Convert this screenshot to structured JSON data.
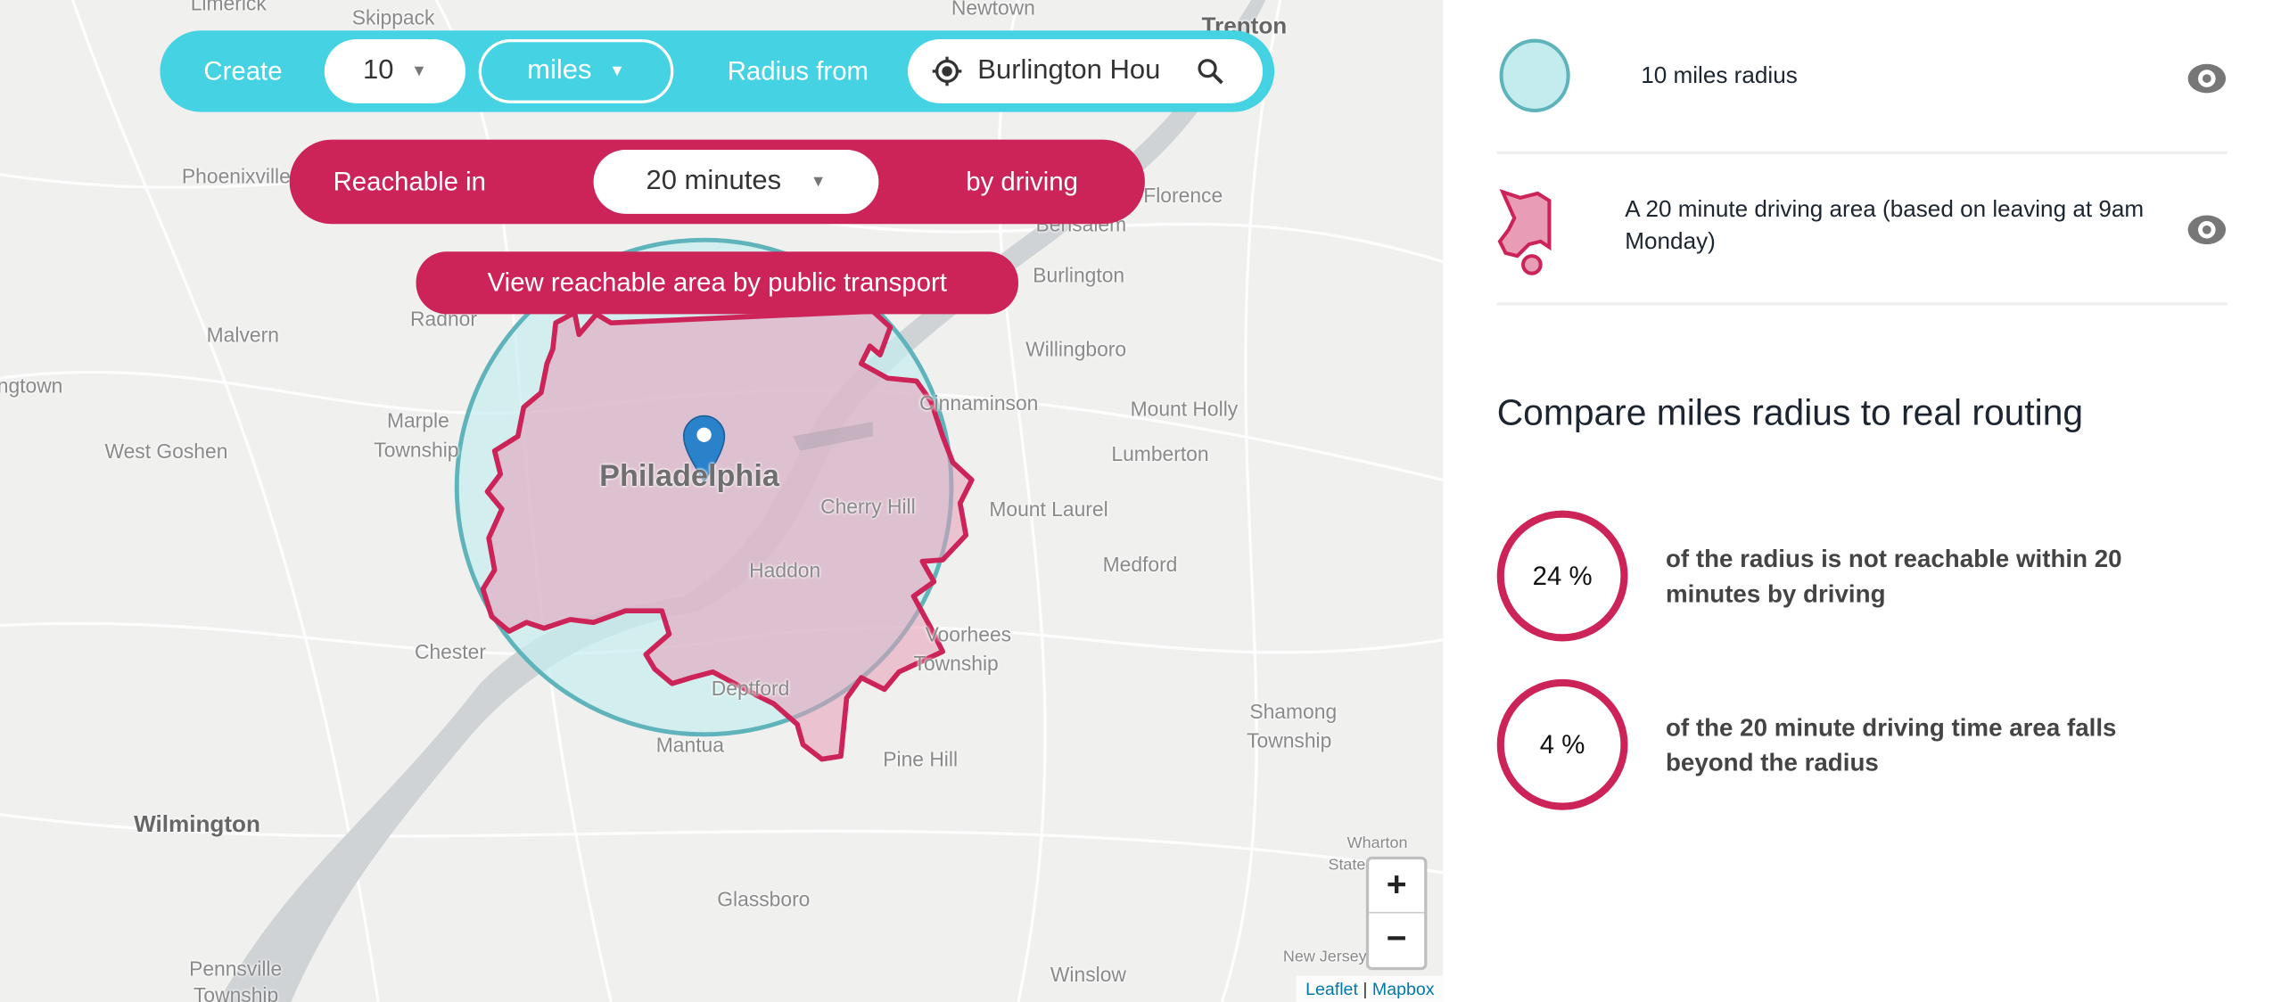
{
  "colors": {
    "accent_cyan": "#45d2e2",
    "accent_crimson": "#cc2458",
    "radius_fill": "#c4ecef",
    "radius_stroke": "#5fb3bb",
    "area_fill": "#e89cb6"
  },
  "controls": {
    "create_label": "Create",
    "radius_value": "10",
    "unit_value": "miles",
    "radius_from_label": "Radius from",
    "location_value": "Burlington Hou",
    "reachable_label": "Reachable in",
    "time_value": "20 minutes",
    "mode_label": "by driving",
    "public_transport_button": "View reachable area by public transport",
    "icons": {
      "locate": "crosshair-icon",
      "search": "search-icon",
      "dropdown": "caret-down-icon"
    }
  },
  "map": {
    "towns": [
      "Limerick",
      "Skippack",
      "Newtown",
      "Trenton",
      "Phoenixville",
      "Malvern",
      "Radnor",
      "Bensalem",
      "Florence",
      "Burlington",
      "Willingboro",
      "Cinnaminson",
      "Mount Holly",
      "ngtown",
      "Marple",
      "Township",
      "West Goshen",
      "Lumberton",
      "Philadelphia",
      "Cherry Hill",
      "Mount Laurel",
      "Haddon",
      "Medford",
      "Chester",
      "Voorhees",
      "Township",
      "Deptford",
      "Mantua",
      "Pine Hill",
      "Shamong",
      "Township",
      "Wilmington",
      "Glassboro",
      "Wharton",
      "State",
      "New Jersey",
      "Winslow",
      "Pennsville",
      "Township"
    ],
    "zoom_in": "+",
    "zoom_out": "−",
    "attribution": {
      "leaflet": "Leaflet",
      "separator": "|",
      "mapbox": "Mapbox"
    }
  },
  "legend": [
    {
      "label": "10 miles radius",
      "icon": "circle-swatch-icon",
      "toggle": "eye-icon"
    },
    {
      "label": "A 20 minute driving area (based on leaving at 9am Monday)",
      "icon": "blob-swatch-icon",
      "toggle": "eye-icon"
    }
  ],
  "compare": {
    "title": "Compare miles radius to real routing",
    "stats": [
      {
        "value": "24 %",
        "text": "of the radius is not reachable within 20 minutes by driving"
      },
      {
        "value": "4 %",
        "text": "of the 20 minute driving time area falls beyond the radius"
      }
    ]
  }
}
